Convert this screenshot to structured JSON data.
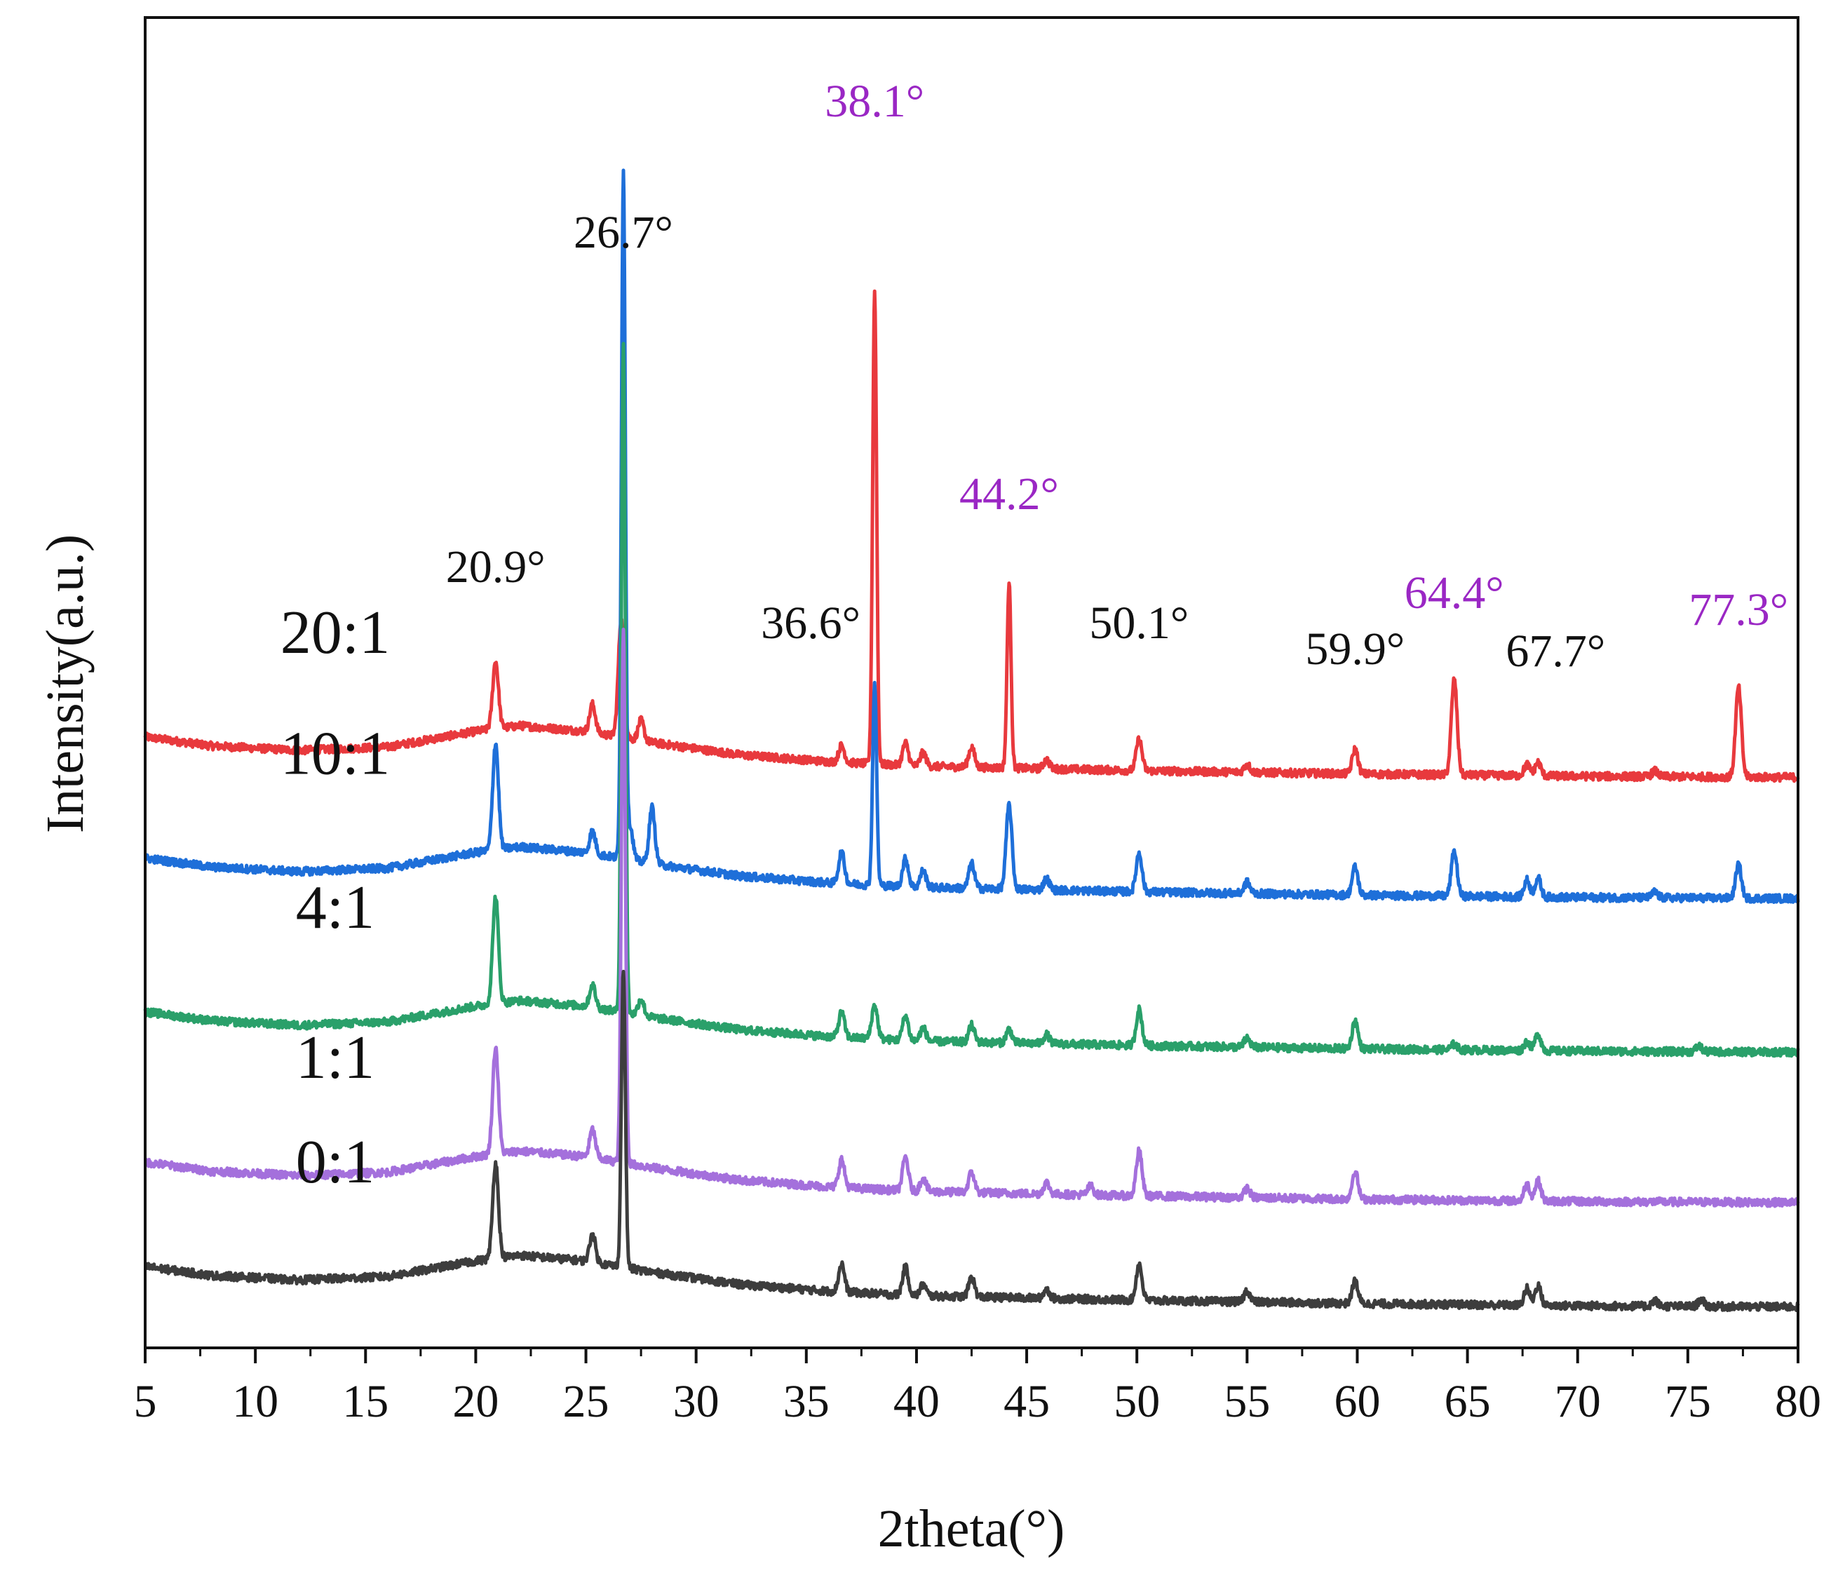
{
  "chart_data": {
    "type": "line",
    "title": "",
    "xlabel": "2theta(°)",
    "ylabel": "Intensity(a.u.)",
    "xlim": [
      5,
      80
    ],
    "x_ticks": [
      5,
      10,
      15,
      20,
      25,
      30,
      35,
      40,
      45,
      50,
      55,
      60,
      65,
      70,
      75,
      80
    ],
    "y_ticks": [],
    "grid": false,
    "legend": "inline labels at left of each trace",
    "series": [
      {
        "name": "20:1",
        "color": "#e8393d",
        "offset": 4.72,
        "baseline": [
          [
            5,
            0.1
          ],
          [
            8,
            0.02
          ],
          [
            12,
            -0.02
          ],
          [
            16,
            0.01
          ],
          [
            20,
            0.15
          ],
          [
            22,
            0.2
          ],
          [
            25,
            0.15
          ],
          [
            28,
            0.05
          ],
          [
            32,
            -0.06
          ],
          [
            36,
            -0.12
          ],
          [
            40,
            -0.16
          ],
          [
            50,
            -0.2
          ],
          [
            60,
            -0.23
          ],
          [
            70,
            -0.25
          ],
          [
            80,
            -0.26
          ]
        ],
        "peaks": [
          [
            20.9,
            0.6
          ],
          [
            25.3,
            0.25
          ],
          [
            26.6,
            1.05
          ],
          [
            27.5,
            0.18
          ],
          [
            36.6,
            0.15
          ],
          [
            38.1,
            4.2
          ],
          [
            39.5,
            0.2
          ],
          [
            40.3,
            0.12
          ],
          [
            42.5,
            0.18
          ],
          [
            44.2,
            1.65
          ],
          [
            45.9,
            0.08
          ],
          [
            50.1,
            0.28
          ],
          [
            55.0,
            0.07
          ],
          [
            59.9,
            0.22
          ],
          [
            64.4,
            0.85
          ],
          [
            67.7,
            0.1
          ],
          [
            68.2,
            0.12
          ],
          [
            73.5,
            0.05
          ],
          [
            77.3,
            0.8
          ]
        ]
      },
      {
        "name": "10:1",
        "color": "#1e6fd9",
        "offset": 3.64,
        "baseline": [
          [
            5,
            0.1
          ],
          [
            8,
            0.02
          ],
          [
            12,
            -0.02
          ],
          [
            16,
            0.01
          ],
          [
            20,
            0.15
          ],
          [
            22,
            0.2
          ],
          [
            25,
            0.15
          ],
          [
            28,
            0.05
          ],
          [
            32,
            -0.06
          ],
          [
            36,
            -0.12
          ],
          [
            40,
            -0.16
          ],
          [
            50,
            -0.2
          ],
          [
            60,
            -0.23
          ],
          [
            70,
            -0.25
          ],
          [
            80,
            -0.26
          ]
        ],
        "peaks": [
          [
            20.9,
            0.95
          ],
          [
            25.3,
            0.2
          ],
          [
            26.7,
            6.1
          ],
          [
            27.0,
            0.3
          ],
          [
            28.0,
            0.5
          ],
          [
            36.6,
            0.28
          ],
          [
            38.1,
            1.8
          ],
          [
            39.5,
            0.25
          ],
          [
            40.3,
            0.15
          ],
          [
            42.5,
            0.22
          ],
          [
            44.2,
            0.75
          ],
          [
            45.9,
            0.1
          ],
          [
            50.1,
            0.35
          ],
          [
            55.0,
            0.1
          ],
          [
            59.9,
            0.25
          ],
          [
            64.4,
            0.4
          ],
          [
            67.7,
            0.15
          ],
          [
            68.2,
            0.17
          ],
          [
            73.5,
            0.05
          ],
          [
            77.3,
            0.3
          ]
        ]
      },
      {
        "name": "4:1",
        "color": "#2aa06a",
        "offset": 2.27,
        "baseline": [
          [
            5,
            0.1
          ],
          [
            8,
            0.02
          ],
          [
            12,
            -0.02
          ],
          [
            16,
            0.01
          ],
          [
            20,
            0.15
          ],
          [
            22,
            0.2
          ],
          [
            25,
            0.15
          ],
          [
            28,
            0.05
          ],
          [
            32,
            -0.06
          ],
          [
            36,
            -0.12
          ],
          [
            40,
            -0.16
          ],
          [
            50,
            -0.2
          ],
          [
            60,
            -0.23
          ],
          [
            70,
            -0.25
          ],
          [
            80,
            -0.26
          ]
        ],
        "peaks": [
          [
            20.9,
            0.95
          ],
          [
            25.3,
            0.2
          ],
          [
            26.7,
            5.95
          ],
          [
            27.5,
            0.15
          ],
          [
            36.6,
            0.22
          ],
          [
            38.1,
            0.3
          ],
          [
            39.5,
            0.22
          ],
          [
            40.3,
            0.12
          ],
          [
            42.5,
            0.15
          ],
          [
            44.2,
            0.12
          ],
          [
            45.9,
            0.08
          ],
          [
            50.1,
            0.32
          ],
          [
            55.0,
            0.08
          ],
          [
            59.9,
            0.25
          ],
          [
            64.4,
            0.05
          ],
          [
            67.7,
            0.08
          ],
          [
            68.2,
            0.15
          ],
          [
            75.5,
            0.05
          ]
        ]
      },
      {
        "name": "1:1",
        "color": "#a470dc",
        "offset": 0.93,
        "baseline": [
          [
            5,
            0.1
          ],
          [
            8,
            0.02
          ],
          [
            12,
            -0.02
          ],
          [
            16,
            0.01
          ],
          [
            20,
            0.15
          ],
          [
            22,
            0.2
          ],
          [
            25,
            0.15
          ],
          [
            28,
            0.05
          ],
          [
            32,
            -0.06
          ],
          [
            36,
            -0.12
          ],
          [
            40,
            -0.16
          ],
          [
            50,
            -0.2
          ],
          [
            60,
            -0.23
          ],
          [
            70,
            -0.25
          ],
          [
            80,
            -0.26
          ]
        ],
        "peaks": [
          [
            20.9,
            0.95
          ],
          [
            25.3,
            0.25
          ],
          [
            26.7,
            4.75
          ],
          [
            36.6,
            0.25
          ],
          [
            39.5,
            0.3
          ],
          [
            40.3,
            0.12
          ],
          [
            42.5,
            0.18
          ],
          [
            45.9,
            0.1
          ],
          [
            47.9,
            0.08
          ],
          [
            50.1,
            0.4
          ],
          [
            55.0,
            0.08
          ],
          [
            59.9,
            0.25
          ],
          [
            67.7,
            0.15
          ],
          [
            68.2,
            0.18
          ]
        ]
      },
      {
        "name": "0:1",
        "color": "#3d3d3d",
        "offset": 0.0,
        "baseline": [
          [
            5,
            0.1
          ],
          [
            8,
            0.02
          ],
          [
            12,
            -0.02
          ],
          [
            16,
            0.01
          ],
          [
            20,
            0.15
          ],
          [
            22,
            0.2
          ],
          [
            25,
            0.15
          ],
          [
            28,
            0.05
          ],
          [
            32,
            -0.06
          ],
          [
            36,
            -0.12
          ],
          [
            40,
            -0.16
          ],
          [
            50,
            -0.2
          ],
          [
            60,
            -0.23
          ],
          [
            70,
            -0.25
          ],
          [
            80,
            -0.26
          ]
        ],
        "peaks": [
          [
            20.9,
            0.85
          ],
          [
            25.3,
            0.25
          ],
          [
            26.7,
            2.65
          ],
          [
            36.6,
            0.25
          ],
          [
            39.5,
            0.25
          ],
          [
            40.3,
            0.1
          ],
          [
            42.5,
            0.18
          ],
          [
            45.9,
            0.08
          ],
          [
            50.1,
            0.32
          ],
          [
            55.0,
            0.1
          ],
          [
            59.9,
            0.2
          ],
          [
            67.7,
            0.15
          ],
          [
            68.2,
            0.18
          ],
          [
            73.5,
            0.05
          ],
          [
            75.6,
            0.06
          ]
        ]
      }
    ],
    "annotations": [
      {
        "text": "38.1°",
        "x": 38.1,
        "y": 10.35,
        "color": "#9a27c4"
      },
      {
        "text": "26.7°",
        "x": 26.7,
        "y": 9.18,
        "color": "#111111"
      },
      {
        "text": "44.2°",
        "x": 44.2,
        "y": 6.85,
        "color": "#9a27c4"
      },
      {
        "text": "20.9°",
        "x": 20.9,
        "y": 6.2,
        "color": "#111111"
      },
      {
        "text": "36.6°",
        "x": 35.2,
        "y": 5.7,
        "color": "#111111"
      },
      {
        "text": "50.1°",
        "x": 50.1,
        "y": 5.7,
        "color": "#111111"
      },
      {
        "text": "59.9°",
        "x": 59.9,
        "y": 5.47,
        "color": "#111111"
      },
      {
        "text": "64.4°",
        "x": 64.4,
        "y": 5.97,
        "color": "#9a27c4"
      },
      {
        "text": "67.7°",
        "x": 69.0,
        "y": 5.45,
        "color": "#111111"
      },
      {
        "text": "77.3°",
        "x": 77.3,
        "y": 5.82,
        "color": "#9a27c4"
      }
    ]
  }
}
